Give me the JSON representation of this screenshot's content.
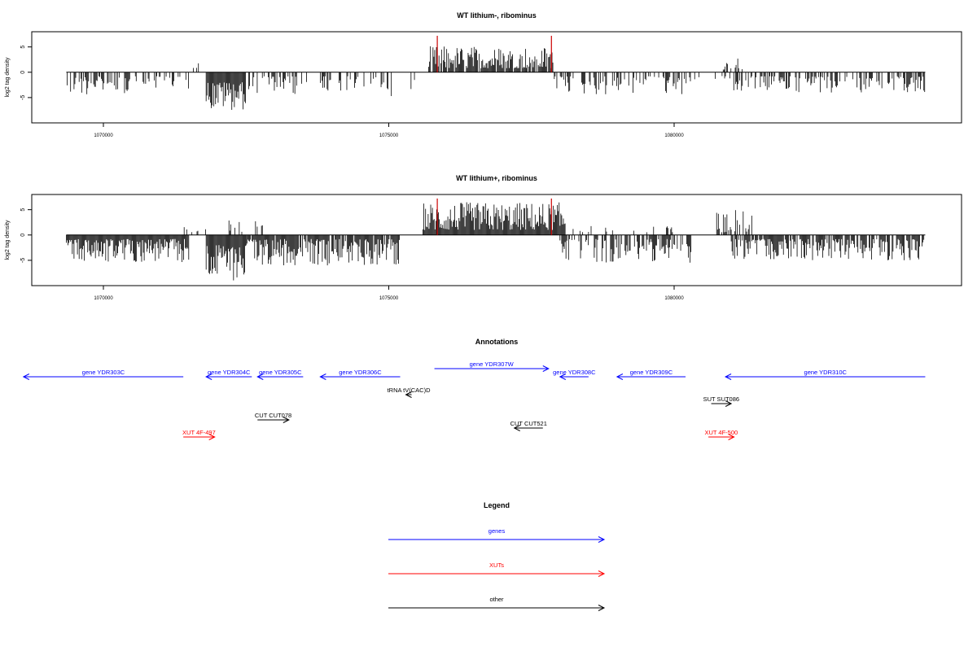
{
  "chart_data": [
    {
      "type": "bar",
      "title": "WT lithium-, ribominus",
      "xlabel": "",
      "ylabel": "log2 tag density",
      "xlim": [
        1068800,
        1084800
      ],
      "ylim": [
        -10,
        8
      ],
      "xticks": [
        1070000,
        1075000,
        1080000
      ],
      "xtick_labels": [
        "1070000",
        "1075000",
        "1080000"
      ],
      "yticks": [
        -5,
        0,
        5
      ],
      "ytick_labels": [
        "-5",
        "0",
        "5"
      ],
      "bar_color": "#000000",
      "highlight_color": "#cc0000",
      "highlight_positions": [
        1075850,
        1077850
      ],
      "highlight_value": 7.2,
      "regions": [
        {
          "from": 1069350,
          "to": 1070500,
          "sign": -1,
          "min": 0.8,
          "max": 4.5,
          "density": 0.55
        },
        {
          "from": 1070500,
          "to": 1071500,
          "sign": -1,
          "min": 0.8,
          "max": 3.5,
          "density": 0.35
        },
        {
          "from": 1071500,
          "to": 1071800,
          "sign": 1,
          "min": 0.5,
          "max": 2.0,
          "density": 0.2
        },
        {
          "from": 1071800,
          "to": 1072500,
          "sign": -1,
          "min": 2.0,
          "max": 7.5,
          "density": 1.0
        },
        {
          "from": 1072500,
          "to": 1073500,
          "sign": -1,
          "min": 0.8,
          "max": 4.5,
          "density": 0.4
        },
        {
          "from": 1073500,
          "to": 1075000,
          "sign": -1,
          "min": 0.8,
          "max": 3.8,
          "density": 0.3
        },
        {
          "from": 1075000,
          "to": 1075500,
          "sign": -1,
          "min": 0.8,
          "max": 5.5,
          "density": 0.15
        },
        {
          "from": 1075700,
          "to": 1077900,
          "sign": 1,
          "min": 0.8,
          "max": 5.2,
          "density": 0.85
        },
        {
          "from": 1077900,
          "to": 1080300,
          "sign": -1,
          "min": 0.8,
          "max": 4.5,
          "density": 0.45
        },
        {
          "from": 1080300,
          "to": 1081000,
          "sign": -1,
          "min": 0.5,
          "max": 2.5,
          "density": 0.15
        },
        {
          "from": 1080800,
          "to": 1081200,
          "sign": 1,
          "min": 0.5,
          "max": 3.0,
          "density": 0.3
        },
        {
          "from": 1081000,
          "to": 1084400,
          "sign": -1,
          "min": 0.8,
          "max": 4.0,
          "density": 0.5
        }
      ]
    },
    {
      "type": "bar",
      "title": "WT lithium+, ribominus",
      "xlabel": "",
      "ylabel": "log2 tag density",
      "xlim": [
        1068800,
        1084800
      ],
      "ylim": [
        -10,
        8
      ],
      "xticks": [
        1070000,
        1075000,
        1080000
      ],
      "xtick_labels": [
        "1070000",
        "1075000",
        "1080000"
      ],
      "yticks": [
        -5,
        0,
        5
      ],
      "ytick_labels": [
        "-5",
        "0",
        "5"
      ],
      "bar_color": "#000000",
      "highlight_color": "#cc0000",
      "highlight_positions": [
        1075850,
        1077850
      ],
      "highlight_value": 7.2,
      "regions": [
        {
          "from": 1069350,
          "to": 1071500,
          "sign": -1,
          "min": 0.8,
          "max": 5.5,
          "density": 1.0
        },
        {
          "from": 1071400,
          "to": 1071800,
          "sign": 1,
          "min": 0.5,
          "max": 2.5,
          "density": 0.3
        },
        {
          "from": 1071800,
          "to": 1072500,
          "sign": -1,
          "min": 2.0,
          "max": 9.0,
          "density": 1.0
        },
        {
          "from": 1072200,
          "to": 1072800,
          "sign": 1,
          "min": 0.5,
          "max": 3.5,
          "density": 0.3
        },
        {
          "from": 1072500,
          "to": 1075200,
          "sign": -1,
          "min": 0.8,
          "max": 6.0,
          "density": 0.9
        },
        {
          "from": 1075600,
          "to": 1078100,
          "sign": 1,
          "min": 1.0,
          "max": 6.5,
          "density": 1.0
        },
        {
          "from": 1078000,
          "to": 1080300,
          "sign": -1,
          "min": 0.8,
          "max": 5.5,
          "density": 0.6
        },
        {
          "from": 1078200,
          "to": 1080000,
          "sign": 1,
          "min": 0.5,
          "max": 1.8,
          "density": 0.1
        },
        {
          "from": 1080700,
          "to": 1081400,
          "sign": 1,
          "min": 0.5,
          "max": 5.0,
          "density": 0.35
        },
        {
          "from": 1081000,
          "to": 1084400,
          "sign": -1,
          "min": 0.8,
          "max": 5.0,
          "density": 0.8
        }
      ]
    }
  ],
  "annotations": {
    "title": "Annotations",
    "features": [
      {
        "label": "gene YDR303C",
        "start": 1068600,
        "end": 1071400,
        "strand": "-",
        "color": "#0000ff",
        "row": 0
      },
      {
        "label": "gene YDR304C",
        "start": 1071800,
        "end": 1072600,
        "strand": "-",
        "color": "#0000ff",
        "row": 0
      },
      {
        "label": "gene YDR305C",
        "start": 1072700,
        "end": 1073500,
        "strand": "-",
        "color": "#0000ff",
        "row": 0
      },
      {
        "label": "gene YDR306C",
        "start": 1073800,
        "end": 1075200,
        "strand": "-",
        "color": "#0000ff",
        "row": 0
      },
      {
        "label": "gene YDR307W",
        "start": 1075800,
        "end": 1077800,
        "strand": "+",
        "color": "#0000ff",
        "row": -1
      },
      {
        "label": "gene YDR308C",
        "start": 1078000,
        "end": 1078500,
        "strand": "-",
        "color": "#0000ff",
        "row": 0
      },
      {
        "label": "gene YDR309C",
        "start": 1079000,
        "end": 1080200,
        "strand": "-",
        "color": "#0000ff",
        "row": 0
      },
      {
        "label": "gene YDR310C",
        "start": 1080900,
        "end": 1084400,
        "strand": "-",
        "color": "#0000ff",
        "row": 0
      },
      {
        "label": "tRNA tV(CAC)D",
        "start": 1075300,
        "end": 1075400,
        "strand": "-",
        "color": "#000000",
        "row": 1
      },
      {
        "label": "SUT SUT086",
        "start": 1080650,
        "end": 1081000,
        "strand": "+",
        "color": "#000000",
        "row": 2
      },
      {
        "label": "CUT CUT078",
        "start": 1072700,
        "end": 1073250,
        "strand": "+",
        "color": "#000000",
        "row": 3
      },
      {
        "label": "CUT CUT521",
        "start": 1077200,
        "end": 1077700,
        "strand": "-",
        "color": "#000000",
        "row": 4
      },
      {
        "label": "XUT 4F-497",
        "start": 1071400,
        "end": 1071950,
        "strand": "+",
        "color": "#ff0000",
        "row": 5
      },
      {
        "label": "XUT 4F-500",
        "start": 1080600,
        "end": 1081050,
        "strand": "+",
        "color": "#ff0000",
        "row": 5
      }
    ]
  },
  "legend": {
    "title": "Legend",
    "items": [
      {
        "label": "genes",
        "color": "#0000ff"
      },
      {
        "label": "XUTs",
        "color": "#ff0000"
      },
      {
        "label": "other",
        "color": "#000000"
      }
    ]
  }
}
